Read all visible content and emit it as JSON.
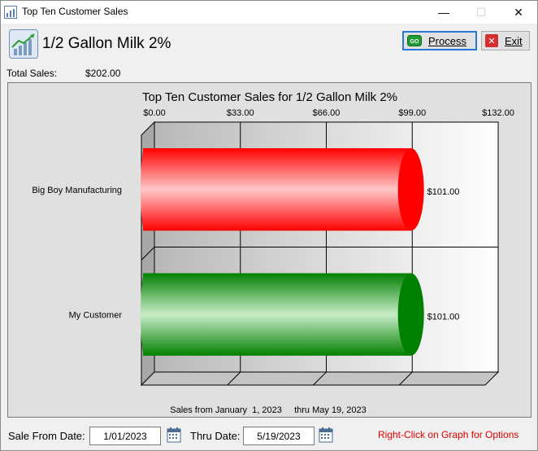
{
  "window": {
    "title": "Top Ten Customer Sales",
    "min_glyph": "—",
    "max_glyph": "☐",
    "close_glyph": "✕",
    "app_icon": "chart-icon"
  },
  "header": {
    "product_title": "1/2 Gallon Milk 2%",
    "icon": "growth-chart-icon"
  },
  "toolbar": {
    "process_label": "Process",
    "process_badge": "GO",
    "exit_label": "Exit",
    "exit_glyph": "✕"
  },
  "summary": {
    "total_sales_label": "Total Sales:",
    "total_sales_value": "$202.00"
  },
  "chart_data": {
    "type": "bar",
    "orientation": "horizontal",
    "style": "3d-cylinder",
    "title": "Top Ten Customer Sales for 1/2 Gallon Milk 2%",
    "categories": [
      "Big Boy Manufacturing",
      "My Customer"
    ],
    "values": [
      101,
      101
    ],
    "value_labels": [
      "$101.00",
      "$101.00"
    ],
    "bar_colors": [
      "#ff0000",
      "#008000"
    ],
    "xlim": [
      0,
      132
    ],
    "ticks": [
      0,
      33,
      66,
      99,
      132
    ],
    "tick_labels": [
      "$0.00",
      "$33.00",
      "$66.00",
      "$99.00",
      "$132.00"
    ],
    "tick_position": "top",
    "grid": true,
    "footer": "Sales from January  1, 2023     thru May 19, 2023"
  },
  "filters": {
    "from_label": "Sale From Date:",
    "from_value": "1/01/2023",
    "thru_label": "Thru Date:",
    "thru_value": "5/19/2023",
    "calendar_icon": "calendar-icon"
  },
  "hint": "Right-Click on Graph for Options",
  "colors": {
    "accent": "#2a78d6",
    "hint": "#e00000",
    "exit_red": "#d32f2f"
  }
}
